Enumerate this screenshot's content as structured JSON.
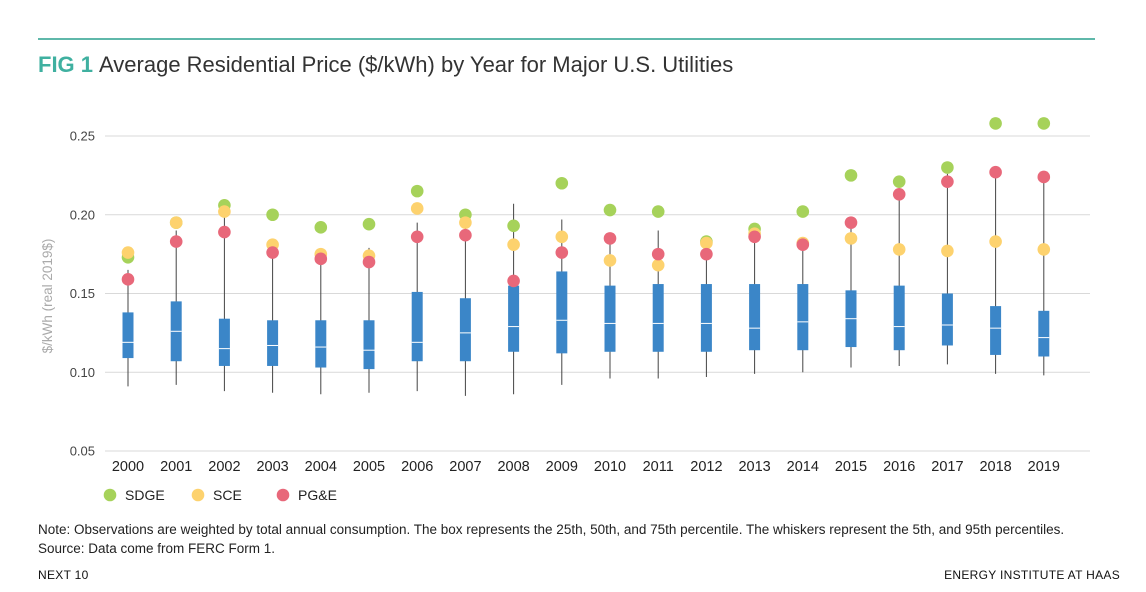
{
  "header": {
    "fig_label": "FIG 1",
    "title": "Average Residential Price ($/kWh) by Year for Major U.S. Utilities"
  },
  "note": "Note: Observations are weighted by total annual consumption. The box represents the 25th, 50th, and 75th percentile. The whiskers represent the 5th, and 95th percentiles. Source: Data come from FERC Form 1.",
  "footer": {
    "left": "NEXT 10",
    "right": "ENERGY INSTITUTE AT HAAS"
  },
  "colors": {
    "box": "#3b86c8",
    "whisker": "#444444",
    "SDGE": "#a6d25a",
    "SCE": "#fdd26e",
    "PGE": "#e8687a",
    "grid": "#d9d9d9",
    "accent": "#3fb0a0"
  },
  "chart_data": {
    "type": "box",
    "title": "Average Residential Price ($/kWh) by Year for Major U.S. Utilities",
    "ylabel": "$/kWh (real 2019$)",
    "ylim": [
      0.05,
      0.26
    ],
    "yticks": [
      "0.05",
      "0.10",
      "0.15",
      "0.20",
      "0.25"
    ],
    "ytick_values": [
      0.05,
      0.1,
      0.15,
      0.2,
      0.25
    ],
    "grid": true,
    "legend_position": "bottom-left",
    "categories": [
      "2000",
      "2001",
      "2002",
      "2003",
      "2004",
      "2005",
      "2006",
      "2007",
      "2008",
      "2009",
      "2010",
      "2011",
      "2012",
      "2013",
      "2014",
      "2015",
      "2016",
      "2017",
      "2018",
      "2019"
    ],
    "box": {
      "p5": [
        0.091,
        0.092,
        0.088,
        0.087,
        0.086,
        0.087,
        0.088,
        0.085,
        0.086,
        0.092,
        0.096,
        0.096,
        0.097,
        0.099,
        0.1,
        0.103,
        0.104,
        0.105,
        0.099,
        0.098
      ],
      "p25": [
        0.109,
        0.107,
        0.104,
        0.104,
        0.103,
        0.102,
        0.107,
        0.107,
        0.113,
        0.112,
        0.113,
        0.113,
        0.113,
        0.114,
        0.114,
        0.116,
        0.114,
        0.117,
        0.111,
        0.11
      ],
      "p50": [
        0.119,
        0.126,
        0.115,
        0.117,
        0.116,
        0.114,
        0.119,
        0.125,
        0.129,
        0.133,
        0.131,
        0.131,
        0.131,
        0.128,
        0.132,
        0.134,
        0.129,
        0.13,
        0.128,
        0.122
      ],
      "p75": [
        0.138,
        0.145,
        0.134,
        0.133,
        0.133,
        0.133,
        0.151,
        0.147,
        0.155,
        0.164,
        0.155,
        0.156,
        0.156,
        0.156,
        0.156,
        0.152,
        0.155,
        0.15,
        0.142,
        0.139
      ],
      "p95": [
        0.165,
        0.19,
        0.2,
        0.182,
        0.176,
        0.179,
        0.195,
        0.194,
        0.207,
        0.197,
        0.185,
        0.19,
        0.185,
        0.187,
        0.185,
        0.196,
        0.212,
        0.226,
        0.228,
        0.226
      ]
    },
    "series": [
      {
        "name": "SDGE",
        "values": [
          0.173,
          0.195,
          0.206,
          0.2,
          0.192,
          0.194,
          0.215,
          0.2,
          0.193,
          0.22,
          0.203,
          0.202,
          0.183,
          0.191,
          0.202,
          0.225,
          0.221,
          0.23,
          0.258,
          0.258
        ]
      },
      {
        "name": "SCE",
        "values": [
          0.176,
          0.195,
          0.202,
          0.181,
          0.175,
          0.174,
          0.204,
          0.195,
          0.181,
          0.186,
          0.171,
          0.168,
          0.182,
          0.188,
          0.182,
          0.185,
          0.178,
          0.177,
          0.183,
          0.178
        ]
      },
      {
        "name": "PG&E",
        "values": [
          0.159,
          0.183,
          0.189,
          0.176,
          0.172,
          0.17,
          0.186,
          0.187,
          0.158,
          0.176,
          0.185,
          0.175,
          0.175,
          0.186,
          0.181,
          0.195,
          0.213,
          0.221,
          0.227,
          0.224
        ]
      }
    ]
  }
}
